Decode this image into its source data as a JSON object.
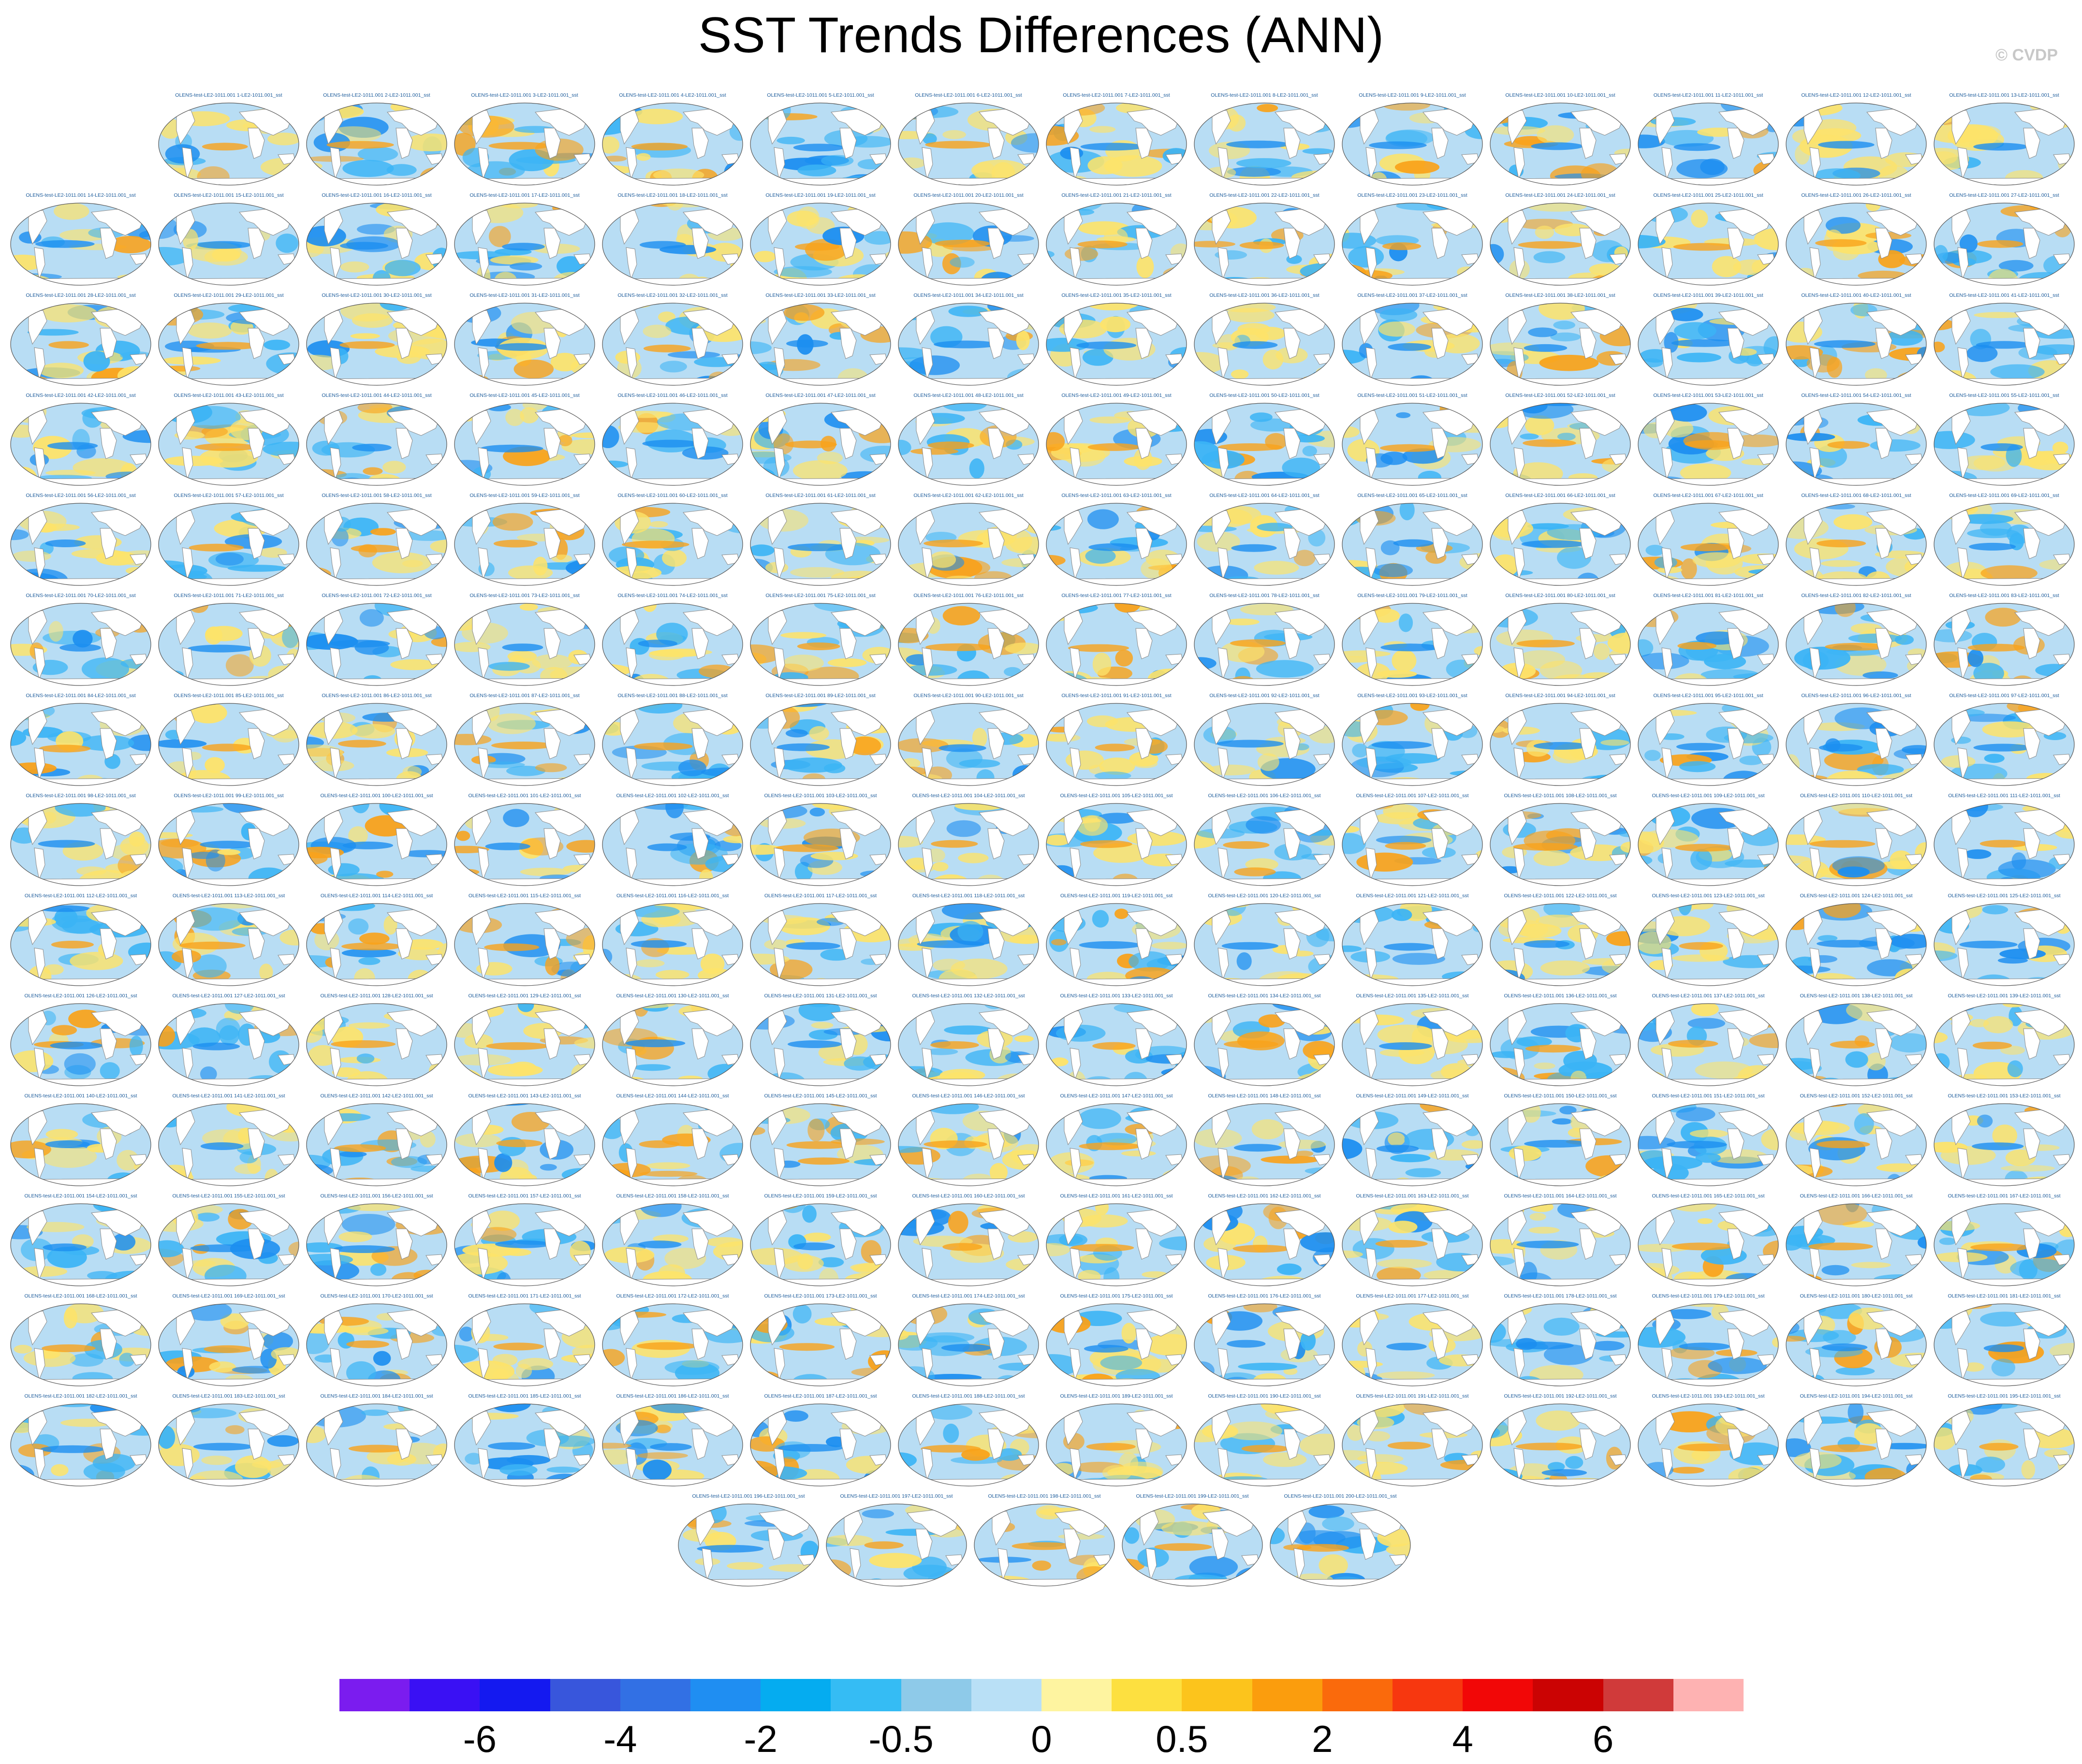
{
  "title": "SST Trends Differences (ANN)",
  "credit": "© CVDP",
  "panel_label_prefix": "OLENS-test-LE2-1011.001",
  "panel_label_middle": "-LE2-1011.001_sst",
  "panel_count": 200,
  "colors": {
    "ocean_base": "#b8ddf4",
    "land": "#ffffff",
    "coast": "#8a8a8a",
    "blue_strong": "#1c8ef0",
    "blue_mid": "#3bb4f5",
    "yellow": "#fde36a",
    "orange": "#f9a21a",
    "label": "#1a5a9a"
  },
  "colorbar": {
    "colors": [
      "#7b1cef",
      "#3a10f4",
      "#1419f0",
      "#3856dc",
      "#3270e4",
      "#1f8ef2",
      "#05acf0",
      "#35bcf4",
      "#8ecae9",
      "#b9e0f6",
      "#fef4a0",
      "#fde040",
      "#fcc41c",
      "#fb9d0d",
      "#fa6a0c",
      "#f7370f",
      "#f20707",
      "#cb0303",
      "#d03a3a",
      "#feb2b2"
    ],
    "tick_labels": [
      "-6",
      "-4",
      "-2",
      "-0.5",
      "0",
      "0.5",
      "2",
      "4",
      "6"
    ],
    "tick_boundaries": [
      2,
      4,
      6,
      8,
      10,
      12,
      14,
      16,
      18
    ]
  }
}
